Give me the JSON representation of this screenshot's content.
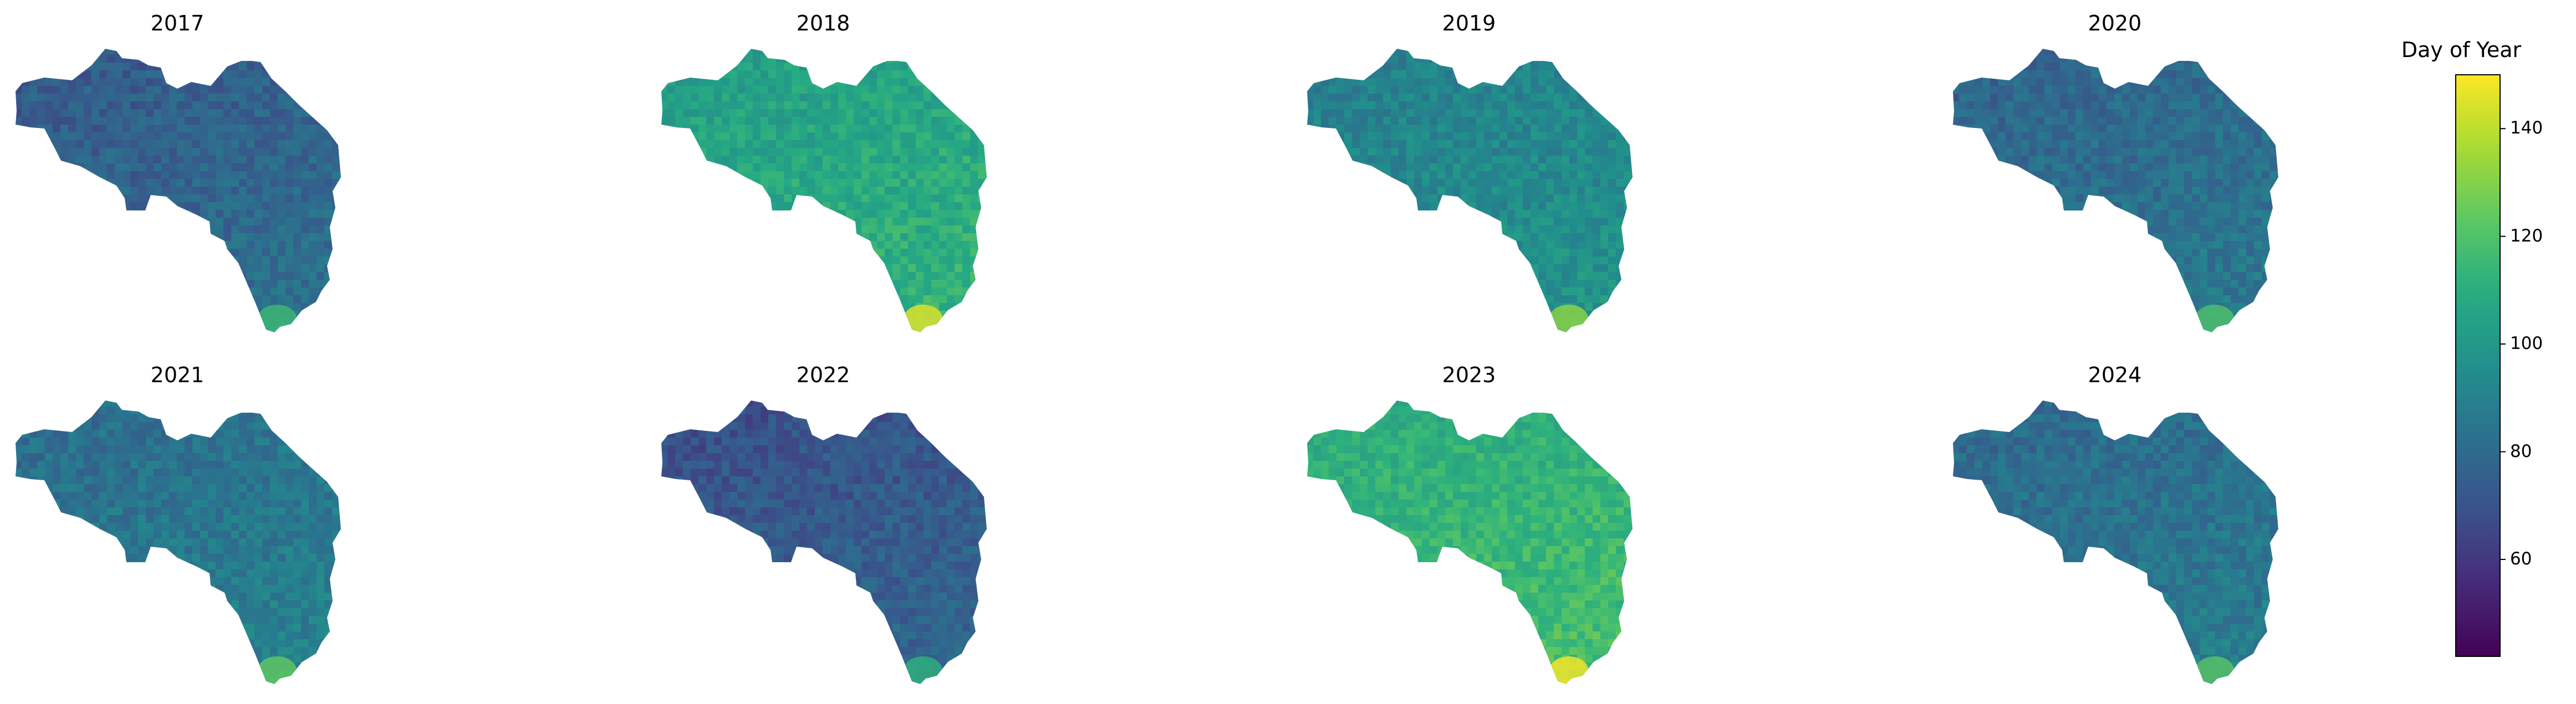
{
  "chart_data": {
    "type": "heatmap",
    "layout": {
      "rows": 2,
      "cols": 4
    },
    "panels": [
      {
        "title": "2017",
        "mean": 78
      },
      {
        "title": "2018",
        "mean": 108
      },
      {
        "title": "2019",
        "mean": 94
      },
      {
        "title": "2020",
        "mean": 82
      },
      {
        "title": "2021",
        "mean": 86
      },
      {
        "title": "2022",
        "mean": 74
      },
      {
        "title": "2023",
        "mean": 114
      },
      {
        "title": "2024",
        "mean": 84
      }
    ],
    "colorbar": {
      "title": "Day of Year",
      "colormap": "viridis",
      "range": [
        42,
        150
      ],
      "ticks": [
        60,
        80,
        100,
        120,
        140
      ],
      "tick_labels": [
        "60",
        "80",
        "100",
        "120",
        "140"
      ]
    }
  }
}
